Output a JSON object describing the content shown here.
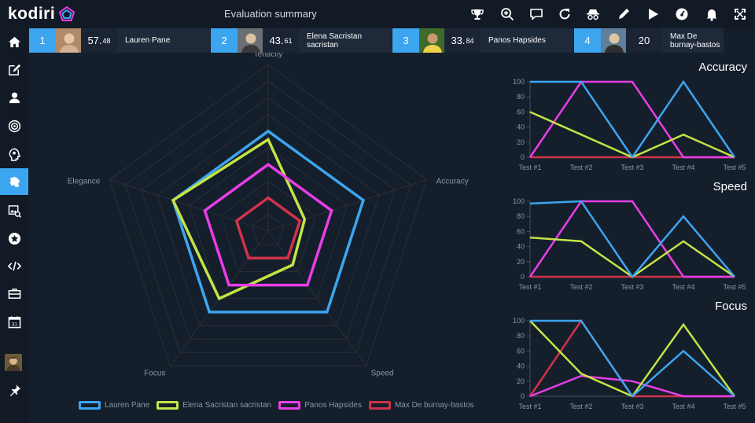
{
  "app": {
    "logo": "kodiri",
    "title": "Evaluation summary"
  },
  "toolbar": [
    {
      "name": "trophy-icon"
    },
    {
      "name": "zoom-in-icon"
    },
    {
      "name": "comment-icon"
    },
    {
      "name": "refresh-icon"
    },
    {
      "name": "spy-icon"
    },
    {
      "name": "pencil-icon"
    },
    {
      "name": "play-icon"
    },
    {
      "name": "dashboard-icon"
    },
    {
      "name": "bell-icon"
    },
    {
      "name": "expand-icon"
    }
  ],
  "sidebar": [
    {
      "name": "home-icon"
    },
    {
      "name": "edit-icon"
    },
    {
      "name": "user-icon"
    },
    {
      "name": "target-icon"
    },
    {
      "name": "head-icon"
    },
    {
      "name": "brain-icon",
      "active": true
    },
    {
      "name": "image-search-icon"
    },
    {
      "name": "star-icon"
    },
    {
      "name": "code-icon"
    },
    {
      "name": "briefcase-icon"
    },
    {
      "name": "calendar-icon"
    },
    {
      "name": "avatar"
    },
    {
      "name": "pin-icon"
    }
  ],
  "calendar_day": "31",
  "ranking": [
    {
      "rank": "1",
      "score_int": "57.",
      "score_dec": "48",
      "name": "Lauren Pane"
    },
    {
      "rank": "2",
      "score_int": "43.",
      "score_dec": "61",
      "name": "Elena Sacristan sacristan"
    },
    {
      "rank": "3",
      "score_int": "33.",
      "score_dec": "84",
      "name": "Panos Hapsides"
    },
    {
      "rank": "4",
      "score_int": "20",
      "score_dec": "",
      "name": "Max De burnay-bastos"
    }
  ],
  "colors": {
    "blue": "#3ca5f0",
    "green": "#c2e545",
    "magenta": "#e83ee8",
    "red": "#d0334b",
    "grid": "#2a2f3a"
  },
  "radar": {
    "axes": [
      "Tenacity",
      "Accuracy",
      "Speed",
      "Focus",
      "Elegance"
    ],
    "max": 10,
    "series": [
      {
        "name": "Lauren Pane",
        "color": "#3ca5f0",
        "values": [
          6.0,
          6.0,
          6.0,
          6.0,
          6.0
        ]
      },
      {
        "name": "Elena Sacristan sacristan",
        "color": "#c2e545",
        "values": [
          5.5,
          2.3,
          2.5,
          5.0,
          6.0
        ]
      },
      {
        "name": "Panos Hapsides",
        "color": "#e83ee8",
        "values": [
          4.0,
          4.0,
          4.0,
          4.0,
          4.0
        ]
      },
      {
        "name": "Max De burnay-bastos",
        "color": "#d0334b",
        "values": [
          2.0,
          2.0,
          2.0,
          2.0,
          2.0
        ]
      }
    ]
  },
  "chart_data": [
    {
      "type": "line",
      "title": "Accuracy",
      "categories": [
        "Test #1",
        "Test #2",
        "Test #3",
        "Test #4",
        "Test #5"
      ],
      "ylim": [
        0,
        100
      ],
      "yticks": [
        "0",
        "20",
        "40",
        "60",
        "80",
        "100"
      ],
      "series": [
        {
          "name": "Lauren Pane",
          "values": [
            100,
            100,
            0,
            100,
            0
          ]
        },
        {
          "name": "Elena Sacristan sacristan",
          "values": [
            60,
            30,
            0,
            30,
            0
          ]
        },
        {
          "name": "Panos Hapsides",
          "values": [
            0,
            100,
            100,
            0,
            0
          ]
        },
        {
          "name": "Max De burnay-bastos",
          "values": [
            0,
            0,
            0,
            0,
            0
          ]
        }
      ]
    },
    {
      "type": "line",
      "title": "Speed",
      "categories": [
        "Test #1",
        "Test #2",
        "Test #3",
        "Test #4",
        "Test #5"
      ],
      "ylim": [
        0,
        100
      ],
      "yticks": [
        "0",
        "20",
        "40",
        "60",
        "80",
        "100"
      ],
      "series": [
        {
          "name": "Lauren Pane",
          "values": [
            97,
            100,
            0,
            80,
            0
          ]
        },
        {
          "name": "Elena Sacristan sacristan",
          "values": [
            52,
            47,
            0,
            47,
            0
          ]
        },
        {
          "name": "Panos Hapsides",
          "values": [
            0,
            100,
            100,
            0,
            0
          ]
        },
        {
          "name": "Max De burnay-bastos",
          "values": [
            0,
            0,
            0,
            0,
            0
          ]
        }
      ]
    },
    {
      "type": "line",
      "title": "Focus",
      "categories": [
        "Test #1",
        "Test #2",
        "Test #3",
        "Test #4",
        "Test #5"
      ],
      "ylim": [
        0,
        100
      ],
      "yticks": [
        "0",
        "20",
        "40",
        "60",
        "80",
        "100"
      ],
      "series": [
        {
          "name": "Lauren Pane",
          "values": [
            100,
            100,
            0,
            60,
            0
          ]
        },
        {
          "name": "Elena Sacristan sacristan",
          "values": [
            100,
            30,
            0,
            95,
            0
          ]
        },
        {
          "name": "Panos Hapsides",
          "values": [
            0,
            27,
            20,
            0,
            0
          ]
        },
        {
          "name": "Max De burnay-bastos",
          "values": [
            0,
            100,
            0,
            0,
            0
          ]
        }
      ]
    }
  ]
}
